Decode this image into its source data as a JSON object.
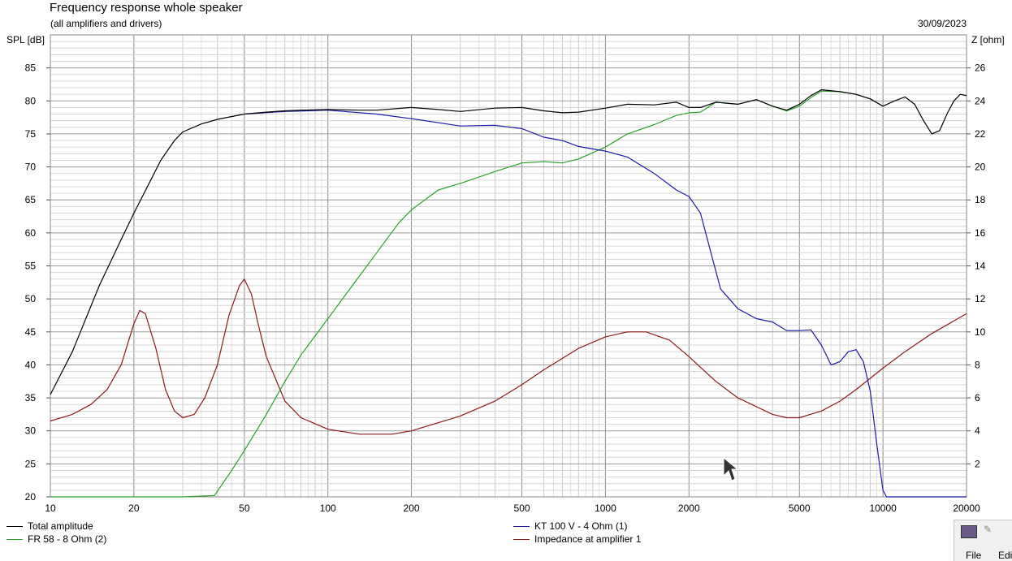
{
  "chart_data": {
    "type": "line",
    "title": "Frequency response whole speaker",
    "subtitle": "(all amplifiers and drivers)",
    "date": "30/09/2023",
    "ylabel": "SPL [dB]",
    "y2label": "Z [ohm]",
    "x_scale": "log",
    "xlim": [
      10,
      20000
    ],
    "ylim": [
      20,
      90
    ],
    "y2lim": [
      0,
      28
    ],
    "x_ticks": [
      10,
      20,
      50,
      100,
      200,
      500,
      1000,
      2000,
      5000,
      10000,
      20000
    ],
    "x_tick_labels": [
      "10",
      "20",
      "50",
      "100",
      "200",
      "500",
      "1000",
      "2000",
      "5000",
      "10000",
      "20000"
    ],
    "y_ticks": [
      20,
      25,
      30,
      35,
      40,
      45,
      50,
      55,
      60,
      65,
      70,
      75,
      80,
      85
    ],
    "y_tick_labels": [
      "20",
      "25",
      "30",
      "35",
      "40",
      "45",
      "50",
      "55",
      "60",
      "65",
      "70",
      "75",
      "80",
      "85"
    ],
    "y2_ticks": [
      2,
      4,
      6,
      8,
      10,
      12,
      14,
      16,
      18,
      20,
      22,
      24,
      26
    ],
    "y2_tick_labels": [
      "2",
      "4",
      "6",
      "8",
      "10",
      "12",
      "14",
      "16",
      "18",
      "20",
      "22",
      "24",
      "26"
    ],
    "grid": true,
    "legend_position": "bottom",
    "series": [
      {
        "name": "Total amplitude",
        "color": "#000000",
        "axis": "left",
        "points": [
          [
            10,
            35.5
          ],
          [
            12,
            42
          ],
          [
            15,
            52
          ],
          [
            18,
            59
          ],
          [
            20,
            63
          ],
          [
            23,
            68
          ],
          [
            25,
            71
          ],
          [
            28,
            74
          ],
          [
            30,
            75.3
          ],
          [
            35,
            76.5
          ],
          [
            40,
            77.2
          ],
          [
            50,
            78
          ],
          [
            60,
            78.3
          ],
          [
            70,
            78.5
          ],
          [
            80,
            78.6
          ],
          [
            100,
            78.7
          ],
          [
            130,
            78.6
          ],
          [
            150,
            78.6
          ],
          [
            200,
            79
          ],
          [
            250,
            78.7
          ],
          [
            300,
            78.4
          ],
          [
            400,
            78.9
          ],
          [
            500,
            79
          ],
          [
            600,
            78.5
          ],
          [
            700,
            78.2
          ],
          [
            800,
            78.3
          ],
          [
            1000,
            78.9
          ],
          [
            1200,
            79.5
          ],
          [
            1500,
            79.4
          ],
          [
            1800,
            79.8
          ],
          [
            2000,
            79
          ],
          [
            2200,
            79
          ],
          [
            2500,
            79.8
          ],
          [
            3000,
            79.5
          ],
          [
            3500,
            80.2
          ],
          [
            4000,
            79.2
          ],
          [
            4500,
            78.6
          ],
          [
            5000,
            79.5
          ],
          [
            5500,
            80.8
          ],
          [
            6000,
            81.7
          ],
          [
            7000,
            81.4
          ],
          [
            8000,
            81
          ],
          [
            9000,
            80.3
          ],
          [
            10000,
            79.2
          ],
          [
            11000,
            80
          ],
          [
            12000,
            80.6
          ],
          [
            13000,
            79.5
          ],
          [
            14000,
            77
          ],
          [
            15000,
            75
          ],
          [
            16000,
            75.5
          ],
          [
            17000,
            78
          ],
          [
            18000,
            80
          ],
          [
            19000,
            81
          ],
          [
            20000,
            80.8
          ]
        ]
      },
      {
        "name": "KT 100 V - 4 Ohm (1)",
        "color": "#1b1ba8",
        "axis": "left",
        "points": [
          [
            50,
            78
          ],
          [
            70,
            78.4
          ],
          [
            100,
            78.6
          ],
          [
            150,
            78
          ],
          [
            200,
            77.3
          ],
          [
            300,
            76.2
          ],
          [
            400,
            76.3
          ],
          [
            500,
            75.8
          ],
          [
            600,
            74.5
          ],
          [
            700,
            74
          ],
          [
            800,
            73.1
          ],
          [
            1000,
            72.4
          ],
          [
            1200,
            71.5
          ],
          [
            1500,
            69
          ],
          [
            1800,
            66.5
          ],
          [
            2000,
            65.5
          ],
          [
            2200,
            63
          ],
          [
            2400,
            57
          ],
          [
            2600,
            51.5
          ],
          [
            3000,
            48.5
          ],
          [
            3500,
            47
          ],
          [
            4000,
            46.5
          ],
          [
            4500,
            45.2
          ],
          [
            5000,
            45.2
          ],
          [
            5500,
            45.3
          ],
          [
            6000,
            43
          ],
          [
            6500,
            40
          ],
          [
            7000,
            40.5
          ],
          [
            7500,
            42
          ],
          [
            8000,
            42.3
          ],
          [
            8500,
            40.5
          ],
          [
            9000,
            36
          ],
          [
            9500,
            28
          ],
          [
            10000,
            21
          ],
          [
            10300,
            20
          ],
          [
            20000,
            20
          ]
        ]
      },
      {
        "name": "FR 58 - 8 Ohm (2)",
        "color": "#2fa02f",
        "axis": "left",
        "points": [
          [
            10,
            20
          ],
          [
            30,
            20
          ],
          [
            39,
            20.2
          ],
          [
            45,
            24
          ],
          [
            50,
            27
          ],
          [
            60,
            32.5
          ],
          [
            70,
            37.5
          ],
          [
            80,
            41.5
          ],
          [
            100,
            47
          ],
          [
            120,
            51.5
          ],
          [
            150,
            57
          ],
          [
            180,
            61.5
          ],
          [
            200,
            63.5
          ],
          [
            250,
            66.5
          ],
          [
            300,
            67.5
          ],
          [
            400,
            69.3
          ],
          [
            500,
            70.6
          ],
          [
            600,
            70.8
          ],
          [
            700,
            70.6
          ],
          [
            800,
            71.2
          ],
          [
            1000,
            73
          ],
          [
            1200,
            75
          ],
          [
            1500,
            76.4
          ],
          [
            1800,
            77.8
          ],
          [
            2000,
            78.2
          ],
          [
            2200,
            78.3
          ],
          [
            2500,
            79.8
          ],
          [
            3000,
            79.5
          ],
          [
            3500,
            80.2
          ],
          [
            4000,
            79.2
          ],
          [
            4500,
            78.5
          ],
          [
            5000,
            79.2
          ],
          [
            5500,
            80.5
          ],
          [
            6000,
            81.5
          ],
          [
            7000,
            81.4
          ],
          [
            8000,
            81
          ],
          [
            9000,
            80.3
          ],
          [
            10000,
            79.2
          ]
        ]
      },
      {
        "name": "Impedance at amplifier 1",
        "color": "#8b1a1a",
        "axis": "right",
        "points": [
          [
            10,
            4.6
          ],
          [
            12,
            5
          ],
          [
            14,
            5.6
          ],
          [
            16,
            6.5
          ],
          [
            18,
            8
          ],
          [
            20,
            10.5
          ],
          [
            21,
            11.3
          ],
          [
            22,
            11.1
          ],
          [
            24,
            9
          ],
          [
            26,
            6.5
          ],
          [
            28,
            5.2
          ],
          [
            30,
            4.8
          ],
          [
            33,
            5
          ],
          [
            36,
            6
          ],
          [
            40,
            8
          ],
          [
            44,
            11
          ],
          [
            48,
            12.8
          ],
          [
            50,
            13.2
          ],
          [
            53,
            12.3
          ],
          [
            56,
            10.5
          ],
          [
            60,
            8.5
          ],
          [
            70,
            5.8
          ],
          [
            80,
            4.8
          ],
          [
            100,
            4.1
          ],
          [
            130,
            3.8
          ],
          [
            170,
            3.8
          ],
          [
            200,
            4
          ],
          [
            300,
            4.9
          ],
          [
            400,
            5.8
          ],
          [
            500,
            6.8
          ],
          [
            600,
            7.7
          ],
          [
            800,
            9
          ],
          [
            1000,
            9.7
          ],
          [
            1200,
            10
          ],
          [
            1400,
            10
          ],
          [
            1700,
            9.5
          ],
          [
            2000,
            8.5
          ],
          [
            2500,
            7
          ],
          [
            3000,
            6
          ],
          [
            4000,
            5
          ],
          [
            4500,
            4.8
          ],
          [
            5000,
            4.8
          ],
          [
            6000,
            5.2
          ],
          [
            7000,
            5.8
          ],
          [
            8000,
            6.5
          ],
          [
            10000,
            7.8
          ],
          [
            12000,
            8.8
          ],
          [
            15000,
            9.9
          ],
          [
            20000,
            11.1
          ]
        ]
      }
    ]
  },
  "legend": [
    {
      "label": "Total amplitude",
      "color": "#000000"
    },
    {
      "label": "KT 100 V - 4 Ohm (1)",
      "color": "#1b1ba8"
    },
    {
      "label": "FR 58 - 8 Ohm (2)",
      "color": "#2fa02f"
    },
    {
      "label": "Impedance at amplifier 1",
      "color": "#8b1a1a"
    }
  ],
  "taskbar": {
    "menu_file": "File",
    "menu_edit": "Edi"
  },
  "icons": {
    "cursor": "mouse-pointer-icon",
    "app": "app-icon",
    "pin": "pin-icon"
  }
}
